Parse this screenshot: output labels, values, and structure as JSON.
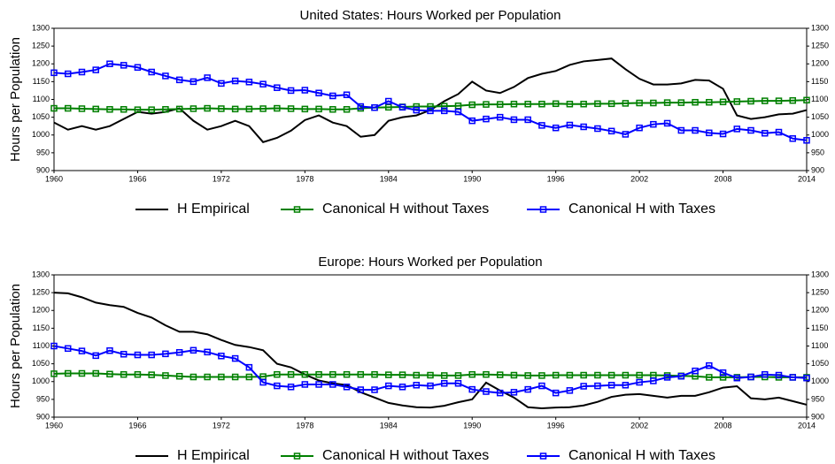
{
  "chart_data": [
    {
      "type": "line",
      "title": "United States: Hours Worked per Population",
      "y_label": "Hours per Population",
      "x": [
        1960,
        1961,
        1962,
        1963,
        1964,
        1965,
        1966,
        1967,
        1968,
        1969,
        1970,
        1971,
        1972,
        1973,
        1974,
        1975,
        1976,
        1977,
        1978,
        1979,
        1980,
        1981,
        1982,
        1983,
        1984,
        1985,
        1986,
        1987,
        1988,
        1989,
        1990,
        1991,
        1992,
        1993,
        1994,
        1995,
        1996,
        1997,
        1998,
        1999,
        2000,
        2001,
        2002,
        2003,
        2004,
        2005,
        2006,
        2007,
        2008,
        2009,
        2010,
        2011,
        2012,
        2013,
        2014
      ],
      "xlim": [
        1960,
        2014
      ],
      "xticks": [
        1960,
        1966,
        1972,
        1978,
        1984,
        1990,
        1996,
        2002,
        2008,
        2014
      ],
      "ylim": [
        900,
        1300
      ],
      "yticks": [
        900,
        950,
        1000,
        1050,
        1100,
        1150,
        1200,
        1250,
        1300
      ],
      "right_axis": true,
      "legend": "bottom",
      "series": [
        {
          "name": "H Empirical",
          "color": "#000000",
          "marker": "none",
          "values": [
            1035,
            1015,
            1025,
            1015,
            1025,
            1045,
            1065,
            1060,
            1065,
            1075,
            1040,
            1015,
            1025,
            1040,
            1025,
            980,
            992,
            1012,
            1042,
            1055,
            1035,
            1025,
            995,
            1000,
            1040,
            1050,
            1055,
            1070,
            1095,
            1115,
            1150,
            1125,
            1118,
            1135,
            1160,
            1172,
            1180,
            1197,
            1207,
            1211,
            1215,
            1185,
            1158,
            1142,
            1142,
            1145,
            1155,
            1153,
            1130,
            1055,
            1045,
            1050,
            1058,
            1060,
            1070
          ]
        },
        {
          "name": "Canonical H without Taxes",
          "color": "#008000",
          "marker": "square",
          "values": [
            1075,
            1075,
            1074,
            1073,
            1072,
            1072,
            1071,
            1071,
            1072,
            1073,
            1074,
            1075,
            1074,
            1073,
            1073,
            1074,
            1075,
            1074,
            1073,
            1073,
            1072,
            1072,
            1075,
            1077,
            1078,
            1079,
            1080,
            1080,
            1081,
            1082,
            1085,
            1086,
            1086,
            1087,
            1087,
            1087,
            1088,
            1087,
            1087,
            1088,
            1088,
            1089,
            1090,
            1090,
            1091,
            1091,
            1092,
            1092,
            1093,
            1094,
            1095,
            1096,
            1096,
            1097,
            1098
          ]
        },
        {
          "name": "Canonical H with Taxes",
          "color": "#0000ff",
          "marker": "square",
          "values": [
            1175,
            1172,
            1177,
            1183,
            1200,
            1196,
            1190,
            1177,
            1166,
            1155,
            1150,
            1161,
            1145,
            1152,
            1149,
            1143,
            1133,
            1125,
            1126,
            1118,
            1110,
            1113,
            1080,
            1077,
            1095,
            1078,
            1070,
            1068,
            1068,
            1065,
            1040,
            1045,
            1050,
            1043,
            1043,
            1027,
            1020,
            1028,
            1023,
            1018,
            1011,
            1002,
            1020,
            1030,
            1033,
            1013,
            1013,
            1006,
            1003,
            1017,
            1013,
            1005,
            1008,
            990,
            985
          ]
        }
      ]
    },
    {
      "type": "line",
      "title": "Europe: Hours Worked per Population",
      "y_label": "Hours per Population",
      "x": [
        1960,
        1961,
        1962,
        1963,
        1964,
        1965,
        1966,
        1967,
        1968,
        1969,
        1970,
        1971,
        1972,
        1973,
        1974,
        1975,
        1976,
        1977,
        1978,
        1979,
        1980,
        1981,
        1982,
        1983,
        1984,
        1985,
        1986,
        1987,
        1988,
        1989,
        1990,
        1991,
        1992,
        1993,
        1994,
        1995,
        1996,
        1997,
        1998,
        1999,
        2000,
        2001,
        2002,
        2003,
        2004,
        2005,
        2006,
        2007,
        2008,
        2009,
        2010,
        2011,
        2012,
        2013,
        2014
      ],
      "xlim": [
        1960,
        2014
      ],
      "xticks": [
        1960,
        1966,
        1972,
        1978,
        1984,
        1990,
        1996,
        2002,
        2008,
        2014
      ],
      "ylim": [
        900,
        1300
      ],
      "yticks": [
        900,
        950,
        1000,
        1050,
        1100,
        1150,
        1200,
        1250,
        1300
      ],
      "right_axis": true,
      "legend": "bottom",
      "series": [
        {
          "name": "H Empirical",
          "color": "#000000",
          "marker": "none",
          "values": [
            1250,
            1248,
            1237,
            1222,
            1215,
            1210,
            1193,
            1180,
            1158,
            1140,
            1140,
            1133,
            1117,
            1103,
            1097,
            1088,
            1050,
            1040,
            1020,
            1003,
            995,
            990,
            970,
            955,
            940,
            933,
            928,
            927,
            932,
            942,
            950,
            997,
            975,
            955,
            928,
            925,
            927,
            928,
            933,
            943,
            957,
            963,
            965,
            960,
            955,
            960,
            960,
            970,
            983,
            987,
            953,
            950,
            955,
            945,
            935
          ]
        },
        {
          "name": "Canonical H without Taxes",
          "color": "#008000",
          "marker": "square",
          "values": [
            1022,
            1023,
            1023,
            1023,
            1021,
            1020,
            1020,
            1019,
            1017,
            1015,
            1013,
            1013,
            1013,
            1013,
            1013,
            1014,
            1020,
            1020,
            1020,
            1020,
            1020,
            1020,
            1020,
            1020,
            1019,
            1019,
            1018,
            1018,
            1017,
            1017,
            1020,
            1020,
            1019,
            1018,
            1017,
            1017,
            1018,
            1018,
            1018,
            1018,
            1018,
            1018,
            1018,
            1018,
            1017,
            1016,
            1015,
            1012,
            1012,
            1012,
            1013,
            1013,
            1012,
            1012,
            1012
          ]
        },
        {
          "name": "Canonical H with Taxes",
          "color": "#0000ff",
          "marker": "square",
          "values": [
            1100,
            1093,
            1086,
            1073,
            1087,
            1077,
            1075,
            1075,
            1078,
            1082,
            1088,
            1083,
            1072,
            1065,
            1040,
            998,
            988,
            985,
            992,
            992,
            992,
            985,
            977,
            977,
            988,
            985,
            990,
            988,
            995,
            995,
            978,
            972,
            968,
            970,
            978,
            988,
            968,
            975,
            987,
            988,
            990,
            990,
            998,
            1002,
            1012,
            1015,
            1030,
            1045,
            1025,
            1010,
            1013,
            1020,
            1018,
            1012,
            1010
          ]
        }
      ]
    }
  ]
}
